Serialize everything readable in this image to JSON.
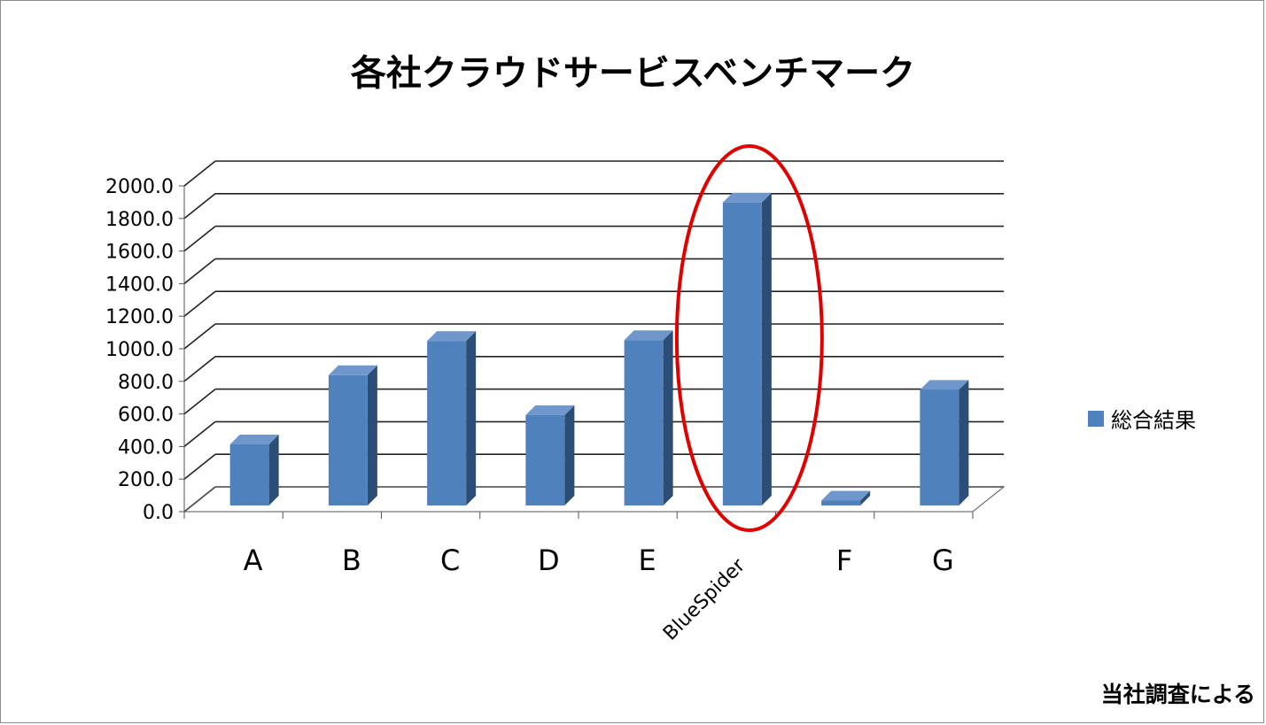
{
  "chart_data": {
    "type": "bar",
    "title": "各社クラウドサービスベンチマーク",
    "categories": [
      "A",
      "B",
      "C",
      "D",
      "E",
      "BlueSpider",
      "F",
      "G"
    ],
    "series": [
      {
        "name": "総合結果",
        "values": [
          375,
          800,
          1010,
          555,
          1015,
          1860,
          30,
          710
        ],
        "color": "#4f81bd"
      }
    ],
    "ylim": [
      0,
      2000
    ],
    "yticks": [
      "0.0",
      "200.0",
      "400.0",
      "600.0",
      "800.0",
      "1000.0",
      "1200.0",
      "1400.0",
      "1600.0",
      "1800.0",
      "2000.0"
    ],
    "grid": true,
    "legend_position": "right",
    "highlight": {
      "category": "BlueSpider",
      "color": "#e00000"
    }
  },
  "note": "当社調査による"
}
